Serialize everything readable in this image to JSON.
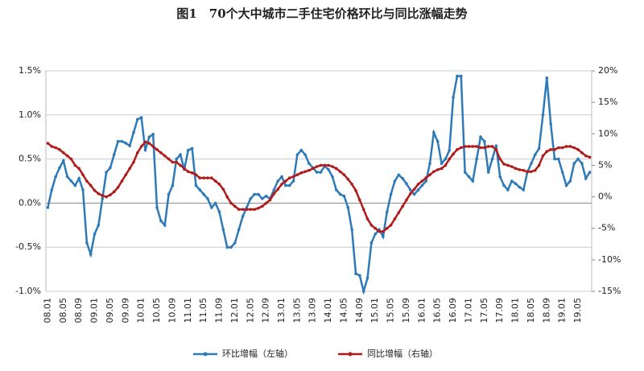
{
  "chart_data": {
    "type": "line",
    "title": "图1　70个大中城市二手住宅价格环比与同比涨幅走势",
    "categories": [
      "08.01",
      null,
      null,
      null,
      "08.05",
      null,
      null,
      null,
      "08.09",
      null,
      null,
      null,
      "09.01",
      null,
      null,
      null,
      "09.05",
      null,
      null,
      null,
      "09.09",
      null,
      null,
      null,
      "10.01",
      null,
      null,
      null,
      "10.05",
      null,
      null,
      null,
      "10.09",
      null,
      null,
      null,
      "11.01",
      null,
      null,
      null,
      "11.05",
      null,
      null,
      null,
      "11.09",
      null,
      null,
      null,
      "12.01",
      null,
      null,
      null,
      "12.05",
      null,
      null,
      null,
      "12.09",
      null,
      null,
      null,
      "13.01",
      null,
      null,
      null,
      "13.05",
      null,
      null,
      null,
      "13.09",
      null,
      null,
      null,
      "14.01",
      null,
      null,
      null,
      "14.05",
      null,
      null,
      null,
      "14.09",
      null,
      null,
      null,
      "15.01",
      null,
      null,
      null,
      "15.05",
      null,
      null,
      null,
      "15.09",
      null,
      null,
      null,
      "16.01",
      null,
      null,
      null,
      "16.05",
      null,
      null,
      null,
      "16.09",
      null,
      null,
      null,
      "17.01",
      null,
      null,
      null,
      "17.05",
      null,
      null,
      null,
      "17.09",
      null,
      null,
      null,
      "18.01",
      null,
      null,
      null,
      "18.05",
      null,
      null,
      null,
      "18.09",
      null,
      null,
      null,
      "19.01",
      null,
      null,
      null,
      "19.05",
      null,
      null,
      null
    ],
    "series": [
      {
        "name": "环比增幅（左轴）",
        "color": "#2e7ab8",
        "axis": "y",
        "values": [
          -0.05,
          0.15,
          0.3,
          0.4,
          0.48,
          0.3,
          0.25,
          0.2,
          0.28,
          0.15,
          -0.45,
          -0.58,
          -0.35,
          -0.25,
          0.05,
          0.35,
          0.4,
          0.55,
          0.7,
          0.7,
          0.68,
          0.65,
          0.8,
          0.95,
          0.97,
          0.6,
          0.75,
          0.78,
          -0.05,
          -0.2,
          -0.25,
          0.1,
          0.2,
          0.5,
          0.55,
          0.38,
          0.6,
          0.62,
          0.2,
          0.15,
          0.1,
          0.05,
          -0.05,
          0,
          -0.1,
          -0.3,
          -0.5,
          -0.5,
          -0.45,
          -0.3,
          -0.15,
          -0.05,
          0.05,
          0.1,
          0.1,
          0.05,
          0.08,
          0.05,
          0.15,
          0.25,
          0.3,
          0.2,
          0.2,
          0.25,
          0.55,
          0.6,
          0.55,
          0.45,
          0.4,
          0.35,
          0.35,
          0.42,
          0.38,
          0.3,
          0.15,
          0.1,
          0.08,
          -0.05,
          -0.3,
          -0.8,
          -0.82,
          -1.0,
          -0.85,
          -0.45,
          -0.35,
          -0.3,
          -0.38,
          -0.1,
          0.1,
          0.25,
          0.32,
          0.28,
          0.22,
          0.15,
          0.1,
          0.15,
          0.2,
          0.25,
          0.45,
          0.8,
          0.7,
          0.45,
          0.5,
          0.6,
          1.2,
          1.44,
          1.44,
          0.35,
          0.3,
          0.25,
          0.5,
          0.75,
          0.7,
          0.35,
          0.5,
          0.65,
          0.3,
          0.2,
          0.15,
          0.25,
          0.22,
          0.18,
          0.15,
          0.35,
          0.45,
          0.55,
          0.62,
          1.0,
          1.42,
          0.9,
          0.5,
          0.5,
          0.35,
          0.2,
          0.25,
          0.45,
          0.5,
          0.45,
          0.28,
          0.35
        ]
      },
      {
        "name": "同比增幅（右轴）",
        "color": "#b01c1c",
        "axis": "y2",
        "values": [
          8.5,
          8,
          7.8,
          7.5,
          7,
          6.5,
          6,
          5,
          4.5,
          3.5,
          2.5,
          1.8,
          1,
          0.5,
          0.2,
          0,
          0.3,
          0.8,
          1.5,
          2.5,
          3.5,
          4.5,
          5.5,
          7,
          8,
          8.7,
          8.5,
          8,
          7.5,
          7,
          6.5,
          6,
          5.5,
          5.5,
          5,
          4.5,
          4,
          3.8,
          3.5,
          3,
          3,
          3,
          3,
          2.5,
          2,
          1.2,
          0,
          -1,
          -1.5,
          -2,
          -2,
          -2,
          -2,
          -2,
          -1.8,
          -1.5,
          -1,
          -0.5,
          0.5,
          1.2,
          2,
          2.5,
          3,
          3.2,
          3.5,
          3.8,
          4,
          4.2,
          4.5,
          4.8,
          5,
          5,
          5,
          4.8,
          4.5,
          4,
          3.5,
          2.8,
          2,
          1,
          -0.5,
          -2,
          -3.5,
          -4.5,
          -5,
          -5.5,
          -5.5,
          -5,
          -4.5,
          -3.5,
          -2.5,
          -1.5,
          -0.5,
          0.5,
          1.2,
          2,
          2.5,
          3,
          3.5,
          4,
          4.3,
          4.5,
          5,
          6,
          6.8,
          7.5,
          7.8,
          8,
          8,
          8,
          8,
          7.8,
          7.8,
          8,
          8,
          7.5,
          6,
          5.2,
          5,
          4.8,
          4.5,
          4.3,
          4.2,
          4,
          4,
          4.2,
          5,
          6.5,
          7.2,
          7.5,
          7.5,
          7.8,
          7.8,
          8,
          8,
          7.8,
          7.5,
          7,
          6.5,
          6.3
        ]
      }
    ],
    "ylim": [
      -1.0,
      1.5
    ],
    "yticks": [
      {
        "value": -1.0,
        "label": "-1.0%"
      },
      {
        "value": -0.5,
        "label": "-0.5%"
      },
      {
        "value": 0.0,
        "label": "0.0%"
      },
      {
        "value": 0.5,
        "label": "0.5%"
      },
      {
        "value": 1.0,
        "label": "1.0%"
      },
      {
        "value": 1.5,
        "label": "1.5%"
      }
    ],
    "y2lim": [
      -15,
      20
    ],
    "y2ticks": [
      {
        "value": -15,
        "label": "-15%"
      },
      {
        "value": -10,
        "label": "-10%"
      },
      {
        "value": -5,
        "label": "-5%"
      },
      {
        "value": 0,
        "label": "0%"
      },
      {
        "value": 5,
        "label": "5%"
      },
      {
        "value": 10,
        "label": "10%"
      },
      {
        "value": 15,
        "label": "15%"
      },
      {
        "value": 20,
        "label": "20%"
      }
    ],
    "grid": true
  }
}
